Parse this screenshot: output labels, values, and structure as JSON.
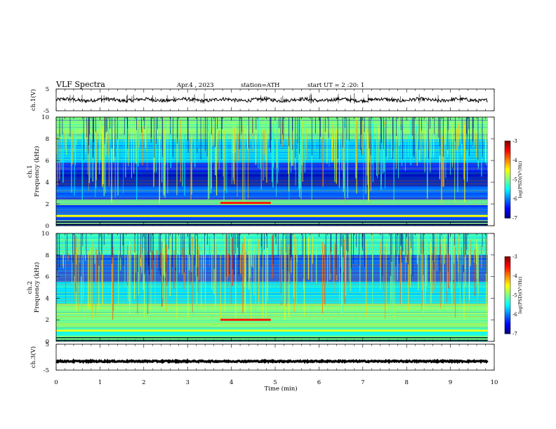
{
  "header": {
    "title": "VLF  Spectra",
    "date": "Apr.4  , 2023",
    "station": "station=ATH",
    "start": "start  UT  =   2  :20: 1"
  },
  "chart_data": [
    {
      "type": "line",
      "panel": "ch1-waveform",
      "ylabel": "ch.1(V)",
      "ylim": [
        -5,
        5
      ],
      "yticks": [
        "5",
        "-5"
      ],
      "xlim": [
        0,
        10
      ],
      "baseline": 0,
      "color": "#000000"
    },
    {
      "type": "heatmap",
      "panel": "ch1-spectrogram",
      "ylabel": "ch.1\nFrequency  (kHz)",
      "ylim": [
        0,
        10
      ],
      "yticks": [
        "0",
        "2",
        "4",
        "6",
        "8",
        "10"
      ],
      "xlim": [
        0,
        9.85
      ],
      "colorbar": {
        "label": "log(PSD)(V²/Hz)",
        "range": [
          -7,
          -3
        ],
        "ticks": [
          "-3",
          "-4",
          "-5",
          "-6",
          "-7"
        ]
      },
      "bands_khz": [
        {
          "from": 8.0,
          "to": 10.0,
          "level": -5.0
        },
        {
          "from": 5.8,
          "to": 8.0,
          "level": -5.7
        },
        {
          "from": 3.6,
          "to": 5.0,
          "level": -6.8
        },
        {
          "from": 2.6,
          "to": 3.6,
          "level": -6.1
        },
        {
          "from": 1.9,
          "to": 2.4,
          "level": -5.0
        },
        {
          "from": 0.0,
          "to": 1.8,
          "level": -6.2
        }
      ],
      "lines_khz": [
        {
          "khz": 2.1,
          "from_min": 3.75,
          "to_min": 4.9,
          "level": -3.6
        },
        {
          "khz": 0.9,
          "from_min": 0.0,
          "to_min": 9.85,
          "level": -4.5
        }
      ]
    },
    {
      "type": "heatmap",
      "panel": "ch2-spectrogram",
      "ylabel": "ch.2\nFrequency  (kHz)",
      "ylim": [
        0,
        10
      ],
      "yticks": [
        "0",
        "2",
        "4",
        "6",
        "8",
        "10"
      ],
      "xlim": [
        0,
        9.85
      ],
      "colorbar": {
        "label": "log(PSD)(V²/Hz)",
        "range": [
          -7,
          -3
        ],
        "ticks": [
          "-3",
          "-4",
          "-5",
          "-6",
          "-7"
        ]
      },
      "bands_khz": [
        {
          "from": 8.0,
          "to": 10.0,
          "level": -5.3
        },
        {
          "from": 5.5,
          "to": 8.0,
          "level": -6.2
        },
        {
          "from": 3.5,
          "to": 5.5,
          "level": -5.6
        },
        {
          "from": 1.2,
          "to": 3.5,
          "level": -5.0
        },
        {
          "from": 0.0,
          "to": 1.2,
          "level": -5.4
        }
      ],
      "lines_khz": [
        {
          "khz": 2.0,
          "from_min": 3.75,
          "to_min": 4.9,
          "level": -3.6
        },
        {
          "khz": 1.0,
          "from_min": 0.0,
          "to_min": 9.85,
          "level": -4.6
        }
      ]
    },
    {
      "type": "line",
      "panel": "ch3-waveform",
      "ylabel": "ch.3(V)",
      "ylim": [
        -5,
        5
      ],
      "yticks": [
        "5",
        "-5"
      ],
      "xlim": [
        0,
        10
      ],
      "baseline": -1.6,
      "color": "#000000"
    }
  ],
  "xaxis": {
    "label": "Time  (min)",
    "range": [
      0,
      10
    ],
    "ticks": [
      "0",
      "1",
      "2",
      "3",
      "4",
      "5",
      "6",
      "7",
      "8",
      "9",
      "10"
    ]
  }
}
